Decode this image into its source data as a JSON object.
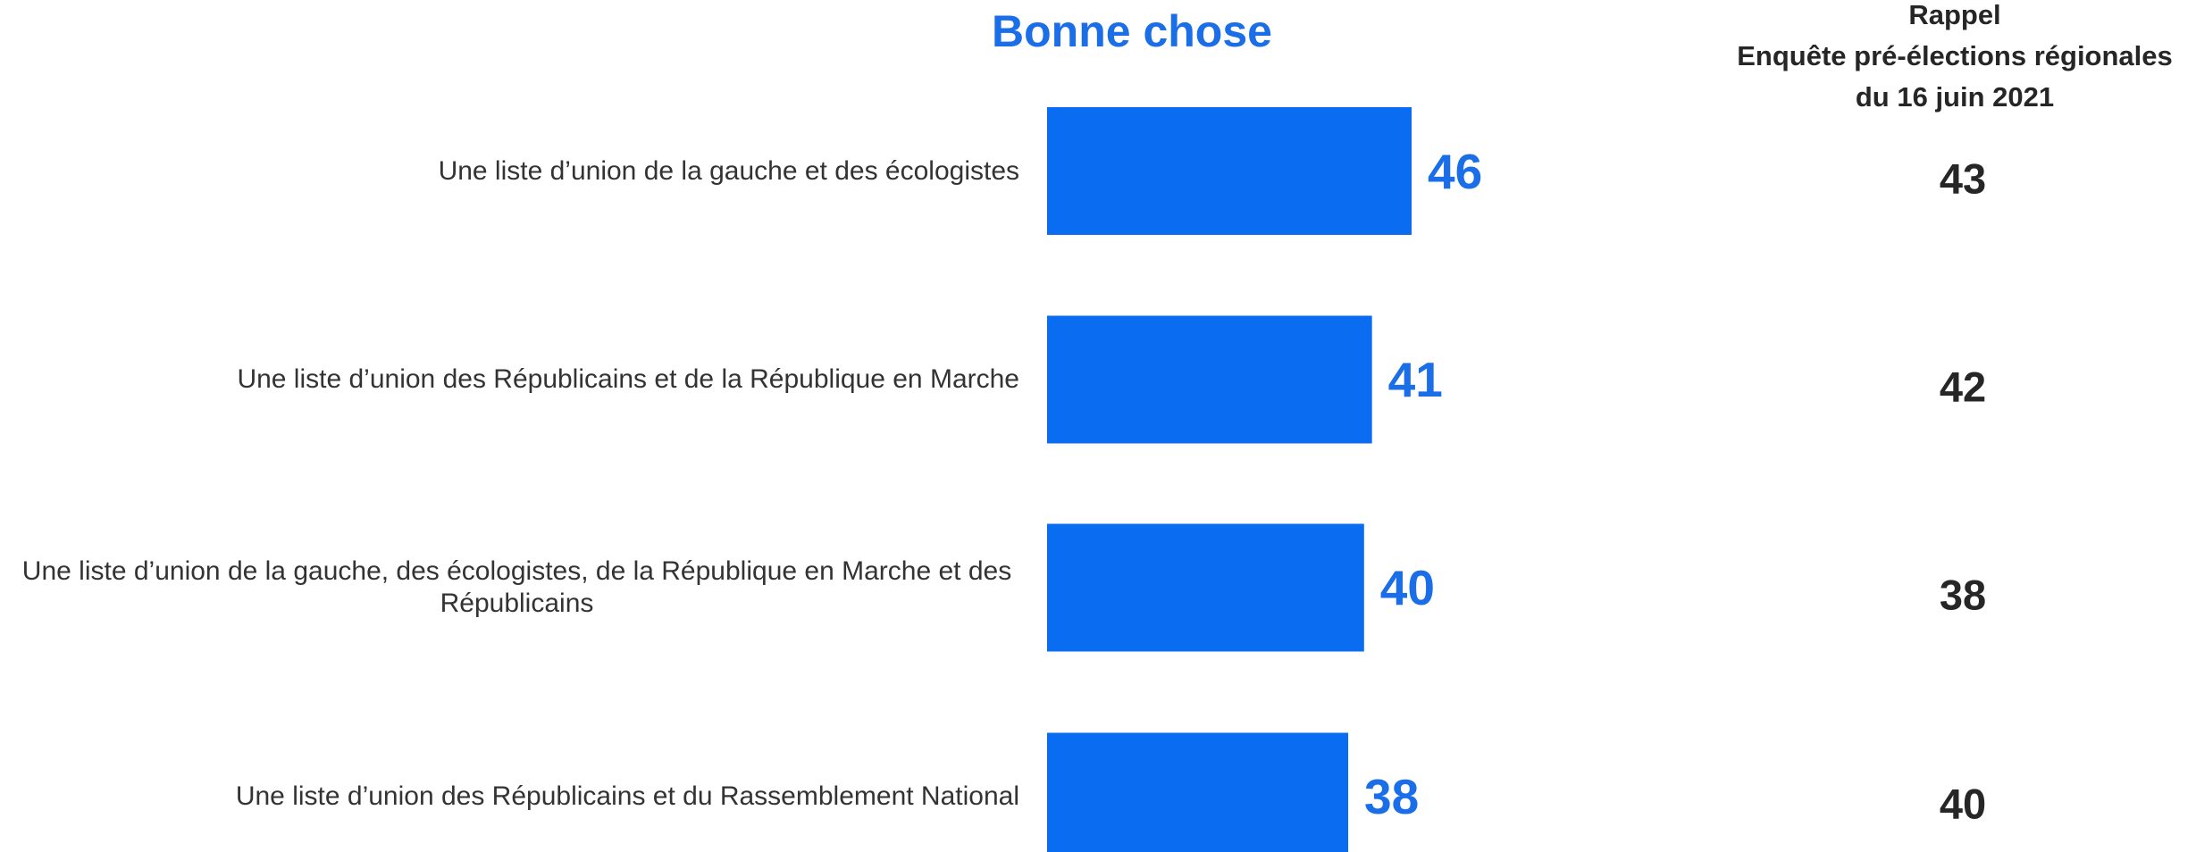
{
  "chart_data": {
    "type": "bar",
    "orientation": "horizontal",
    "title": "Bonne chose",
    "categories": [
      "Une liste d’union de la gauche et des écologistes",
      "Une liste d’union des Républicains et de la République en Marche",
      "Une liste d’union de la gauche, des écologistes, de la République en Marche et des Républicains",
      "Une liste d’union des Républicains et du Rassemblement National"
    ],
    "values": [
      46,
      41,
      40,
      38
    ],
    "color": "#0a6cf0",
    "xlim": [
      0,
      100
    ],
    "reference": {
      "title_lines": [
        "Rappel",
        "Enquête pré-élections régionales",
        "du 16 juin 2021"
      ],
      "values": [
        43,
        42,
        38,
        40
      ]
    }
  }
}
